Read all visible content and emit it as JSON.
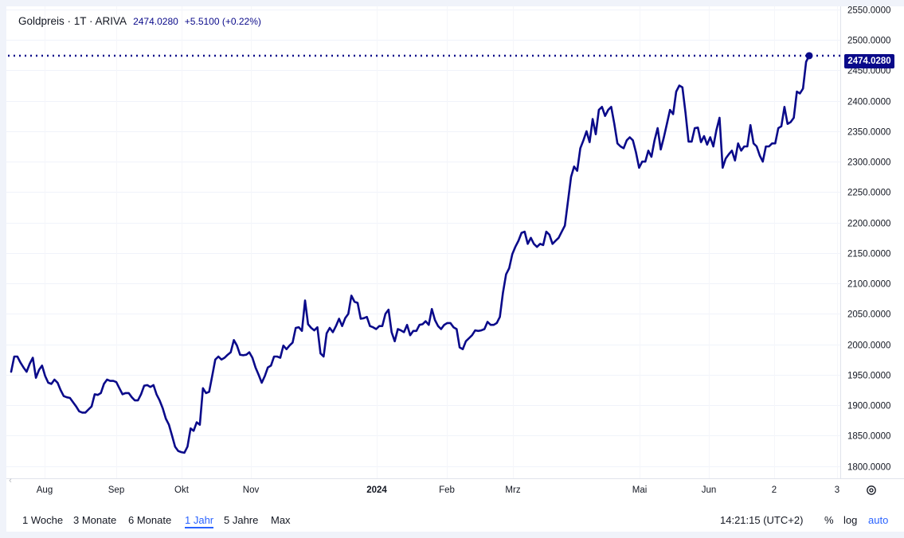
{
  "legend": {
    "symbol": "Goldpreis · 1T · ARIVA",
    "last": "2474.0280",
    "change": "+5.5100 (+0.22%)"
  },
  "last_price_label": "2474.0280",
  "range_buttons": [
    "1 Woche",
    "3 Monate",
    "6 Monate",
    "1 Jahr",
    "5 Jahre",
    "Max"
  ],
  "active_range": "1 Jahr",
  "clock": "14:21:15 (UTC+2)",
  "options": {
    "percent": "%",
    "log": "log",
    "auto": "auto"
  },
  "colors": {
    "line": "#0a0a8a",
    "accent": "#2962ff",
    "background": "#ffffff"
  },
  "icons": {
    "settings": "gear-icon",
    "scroll": "chevron-left-icon"
  },
  "chart_data": {
    "type": "line",
    "ylim": [
      1780,
      2555
    ],
    "y_ticks": [
      "1800.0000",
      "1850.0000",
      "1900.0000",
      "1950.0000",
      "2000.0000",
      "2050.0000",
      "2100.0000",
      "2150.0000",
      "2200.0000",
      "2250.0000",
      "2300.0000",
      "2350.0000",
      "2400.0000",
      "2450.0000",
      "2500.0000",
      "2550.0000"
    ],
    "x_ticks": [
      {
        "label": "Aug",
        "bold": false
      },
      {
        "label": "Sep",
        "bold": false
      },
      {
        "label": "Okt",
        "bold": false
      },
      {
        "label": "Nov",
        "bold": false
      },
      {
        "label": "2024",
        "bold": true
      },
      {
        "label": "Feb",
        "bold": false
      },
      {
        "label": "Mrz",
        "bold": false
      },
      {
        "label": "Mai",
        "bold": false
      },
      {
        "label": "Jun",
        "bold": false
      },
      {
        "label": "2",
        "bold": false
      },
      {
        "label": "3",
        "bold": false
      }
    ],
    "series": [
      {
        "values": [
          1955,
          1980,
          1980,
          1970,
          1962,
          1955,
          1968,
          1978,
          1945,
          1958,
          1965,
          1948,
          1937,
          1935,
          1942,
          1937,
          1925,
          1915,
          1913,
          1912,
          1905,
          1898,
          1890,
          1888,
          1888,
          1893,
          1898,
          1918,
          1917,
          1920,
          1935,
          1942,
          1940,
          1940,
          1938,
          1928,
          1918,
          1920,
          1920,
          1913,
          1908,
          1908,
          1918,
          1932,
          1933,
          1930,
          1933,
          1918,
          1908,
          1895,
          1878,
          1868,
          1850,
          1832,
          1825,
          1823,
          1822,
          1832,
          1862,
          1858,
          1872,
          1868,
          1928,
          1920,
          1922,
          1948,
          1975,
          1980,
          1975,
          1978,
          1983,
          1987,
          2007,
          1998,
          1983,
          1982,
          1983,
          1987,
          1978,
          1962,
          1950,
          1937,
          1948,
          1962,
          1965,
          1980,
          1980,
          1978,
          1998,
          1992,
          1998,
          2003,
          2027,
          2028,
          2022,
          2072,
          2033,
          2027,
          2023,
          2028,
          1985,
          1980,
          2018,
          2027,
          2020,
          2030,
          2042,
          2030,
          2043,
          2050,
          2080,
          2070,
          2068,
          2042,
          2043,
          2045,
          2030,
          2028,
          2025,
          2030,
          2030,
          2050,
          2057,
          2020,
          2005,
          2025,
          2023,
          2020,
          2032,
          2015,
          2022,
          2022,
          2032,
          2033,
          2038,
          2032,
          2058,
          2040,
          2030,
          2025,
          2032,
          2035,
          2035,
          2028,
          2025,
          1995,
          1992,
          2005,
          2010,
          2015,
          2023,
          2022,
          2023,
          2025,
          2037,
          2032,
          2032,
          2035,
          2045,
          2085,
          2115,
          2125,
          2148,
          2160,
          2170,
          2183,
          2185,
          2165,
          2175,
          2165,
          2160,
          2165,
          2163,
          2185,
          2180,
          2165,
          2170,
          2175,
          2185,
          2195,
          2235,
          2275,
          2292,
          2285,
          2322,
          2335,
          2350,
          2332,
          2370,
          2345,
          2385,
          2390,
          2375,
          2385,
          2390,
          2362,
          2330,
          2325,
          2322,
          2335,
          2340,
          2335,
          2315,
          2290,
          2300,
          2300,
          2318,
          2308,
          2335,
          2355,
          2320,
          2340,
          2362,
          2385,
          2378,
          2415,
          2425,
          2422,
          2380,
          2333,
          2333,
          2355,
          2356,
          2332,
          2342,
          2328,
          2340,
          2325,
          2352,
          2372,
          2290,
          2305,
          2312,
          2318,
          2302,
          2330,
          2318,
          2325,
          2325,
          2360,
          2330,
          2325,
          2310,
          2300,
          2325,
          2325,
          2330,
          2330,
          2355,
          2358,
          2390,
          2362,
          2365,
          2372,
          2415,
          2412,
          2420,
          2464,
          2474
        ]
      }
    ]
  }
}
